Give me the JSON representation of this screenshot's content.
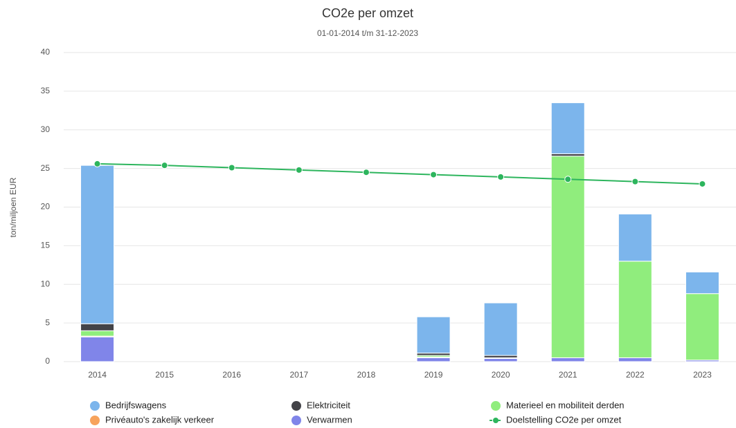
{
  "chart_data": {
    "type": "bar",
    "stacked": true,
    "title": "CO2e per omzet",
    "subtitle": "01-01-2014 t/m 31-12-2023",
    "y_label": "ton/miljoen EUR",
    "categories": [
      "2014",
      "2015",
      "2016",
      "2017",
      "2018",
      "2019",
      "2020",
      "2021",
      "2022",
      "2023"
    ],
    "ylim": [
      0,
      40
    ],
    "yticks": [
      0,
      5,
      10,
      15,
      20,
      25,
      30,
      35,
      40
    ],
    "grid": true,
    "series": [
      {
        "name": "Bedrijfswagens",
        "color": "#7cb5ec",
        "values": [
          20.5,
          0,
          0,
          0,
          0,
          4.7,
          6.8,
          6.6,
          6.1,
          2.8
        ]
      },
      {
        "name": "Elektriciteit",
        "color": "#434348",
        "values": [
          0.9,
          0,
          0,
          0,
          0,
          0.3,
          0.3,
          0.3,
          0,
          0
        ]
      },
      {
        "name": "Materieel en mobiliteit derden",
        "color": "#90ed7d",
        "values": [
          0.7,
          0,
          0,
          0,
          0,
          0.2,
          0.1,
          26.1,
          12.5,
          8.6
        ]
      },
      {
        "name": "Privéauto's zakelijk verkeer",
        "color": "#f7a35c",
        "values": [
          0.1,
          0,
          0,
          0,
          0,
          0.1,
          0,
          0,
          0,
          0
        ]
      },
      {
        "name": "Verwarmen",
        "color": "#8085e9",
        "values": [
          3.2,
          0,
          0,
          0,
          0,
          0.5,
          0.4,
          0.5,
          0.5,
          0.2
        ]
      },
      {
        "name": "Doelstelling CO2e per omzet",
        "color": "#2db55d",
        "type": "line",
        "values": [
          25.6,
          25.4,
          25.1,
          24.8,
          24.5,
          24.2,
          23.9,
          23.6,
          23.3,
          23.0
        ]
      }
    ]
  }
}
